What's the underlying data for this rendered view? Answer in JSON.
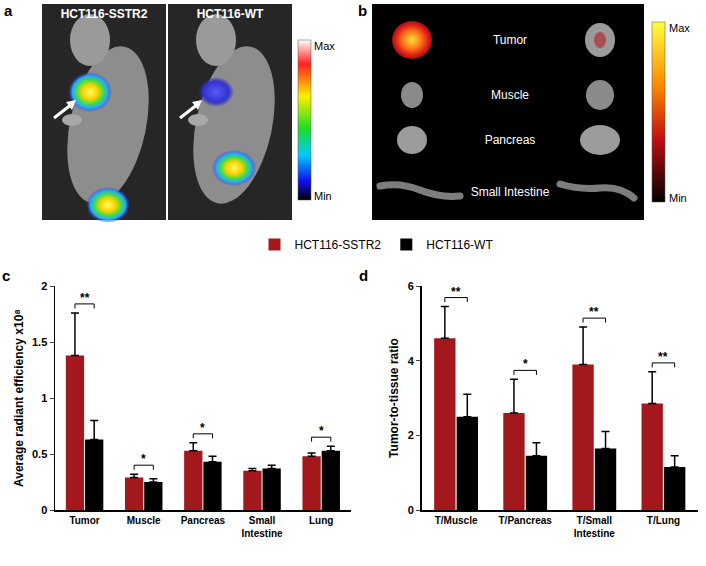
{
  "panels": [
    {
      "label": "a",
      "images": [
        "HCT116-SSTR2",
        "HCT116-WT"
      ],
      "colorbar": [
        "Max",
        "Min"
      ]
    },
    {
      "label": "b",
      "rows": [
        "Tumor",
        "Muscle",
        "Pancreas",
        "Small Intestine"
      ],
      "colorbar": [
        "Max",
        "Min"
      ]
    }
  ],
  "chart_data": [
    {
      "panel": "c",
      "type": "bar",
      "categories": [
        "Tumor",
        "Muscle",
        "Pancreas",
        "Small Intestine",
        "Lung"
      ],
      "y_label": "Average radiant efficiency x10⁸",
      "series": [
        {
          "name": "HCT116-SSTR2",
          "color": "#a3181c",
          "values": [
            1.38,
            0.29,
            0.53,
            0.35,
            0.48
          ],
          "errors": [
            0.38,
            0.03,
            0.07,
            0.02,
            0.03
          ]
        },
        {
          "name": "HCT116-WT",
          "color": "#000000",
          "values": [
            0.63,
            0.25,
            0.43,
            0.37,
            0.53
          ],
          "errors": [
            0.17,
            0.03,
            0.05,
            0.03,
            0.04
          ]
        }
      ],
      "significance": [
        "**",
        "*",
        "*",
        null,
        "*"
      ],
      "ylim": [
        0,
        2
      ],
      "yticks": [
        0,
        0.5,
        1,
        1.5,
        2
      ],
      "grid": false,
      "legend": "top"
    },
    {
      "panel": "d",
      "type": "bar",
      "categories": [
        "T/Muscle",
        "T/Pancreas",
        "T/Small Intestine",
        "T/Lung"
      ],
      "y_label": "Tumor-to-tissue ratio",
      "series": [
        {
          "name": "HCT116-SSTR2",
          "color": "#a3181c",
          "values": [
            4.6,
            2.6,
            3.9,
            2.85
          ],
          "errors": [
            0.85,
            0.9,
            1.0,
            0.85
          ]
        },
        {
          "name": "HCT116-WT",
          "color": "#000000",
          "values": [
            2.5,
            1.45,
            1.65,
            1.15
          ],
          "errors": [
            0.6,
            0.35,
            0.45,
            0.3
          ]
        }
      ],
      "significance": [
        "**",
        "*",
        "**",
        "**"
      ],
      "ylim": [
        0,
        6
      ],
      "yticks": [
        0,
        2,
        4,
        6
      ],
      "grid": false
    }
  ]
}
